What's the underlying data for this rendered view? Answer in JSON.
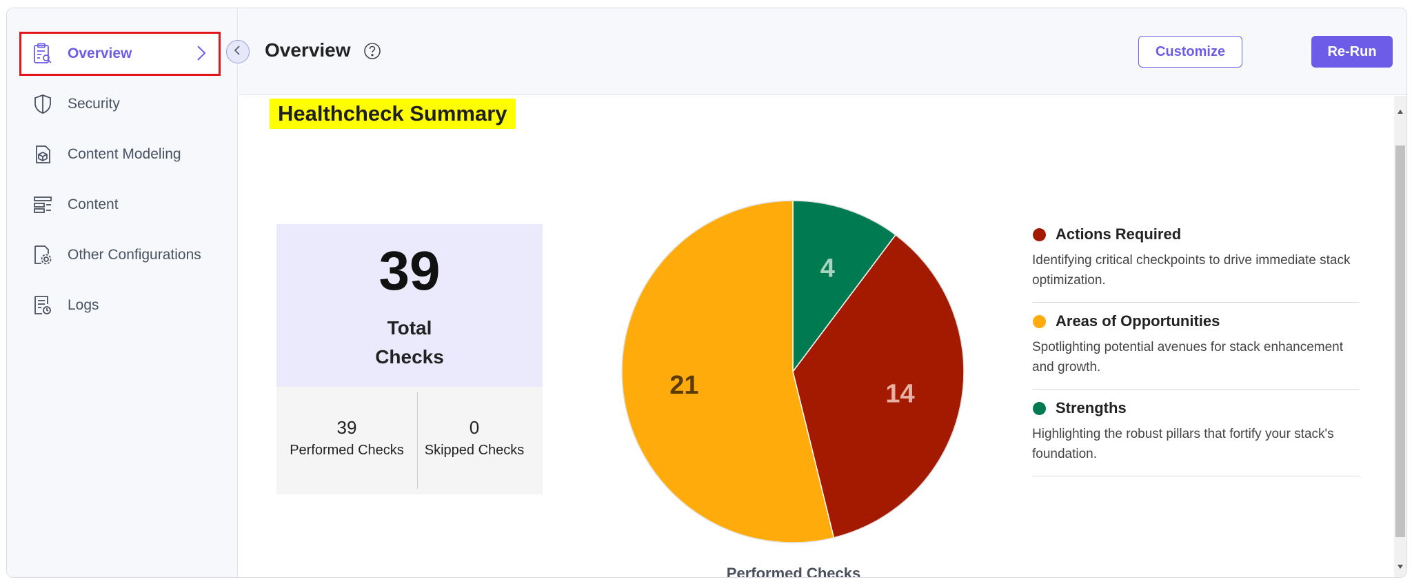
{
  "sidebar": {
    "items": [
      {
        "label": "Overview",
        "icon": "clipboard-search-icon",
        "active": true
      },
      {
        "label": "Security",
        "icon": "shield-icon"
      },
      {
        "label": "Content Modeling",
        "icon": "cube-document-icon"
      },
      {
        "label": "Content",
        "icon": "content-list-icon"
      },
      {
        "label": "Other Configurations",
        "icon": "settings-document-icon"
      },
      {
        "label": "Logs",
        "icon": "logs-document-icon"
      }
    ]
  },
  "header": {
    "title": "Overview",
    "customize_label": "Customize",
    "rerun_label": "Re-Run"
  },
  "summary": {
    "title": "Healthcheck Summary",
    "total_value": "39",
    "total_label_line1": "Total",
    "total_label_line2": "Checks",
    "performed_value": "39",
    "performed_label": "Performed Checks",
    "skipped_value": "0",
    "skipped_label": "Skipped Checks"
  },
  "chart_data": {
    "type": "pie",
    "title": "Performed Checks",
    "slices": [
      {
        "name": "Strengths",
        "value": 4,
        "color": "#007a50"
      },
      {
        "name": "Actions Required",
        "value": 14,
        "color": "#a31a00"
      },
      {
        "name": "Areas of Opportunities",
        "value": 21,
        "color": "#feab0b"
      }
    ]
  },
  "legend": [
    {
      "title": "Actions Required",
      "desc": "Identifying critical checkpoints to drive immediate stack optimization.",
      "color": "#a31a00"
    },
    {
      "title": "Areas of Opportunities",
      "desc": "Spotlighting potential avenues for stack enhancement and growth.",
      "color": "#feab0b"
    },
    {
      "title": "Strengths",
      "desc": "Highlighting the robust pillars that fortify your stack's foundation.",
      "color": "#007a50"
    }
  ],
  "colors": {
    "accent": "#6c5ce7",
    "highlight": "#ffff00",
    "active_outline": "#e0161b"
  }
}
